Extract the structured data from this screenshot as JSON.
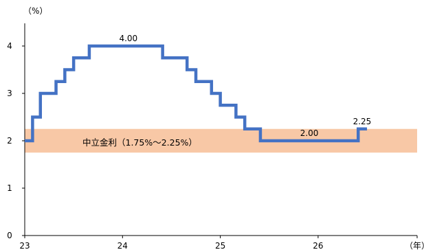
{
  "chart_data": {
    "type": "line",
    "y_unit": "（%）",
    "x_unit": "（年）",
    "x_ticks": [
      {
        "value": 23,
        "label": "23"
      },
      {
        "value": 24,
        "label": "24"
      },
      {
        "value": 25,
        "label": "25"
      },
      {
        "value": 26,
        "label": "26"
      }
    ],
    "y_ticks": [
      0,
      1,
      2,
      3,
      4
    ],
    "xlim": [
      23,
      27
    ],
    "ylim": [
      0,
      4.5
    ],
    "grid": false,
    "band": {
      "label": "中立金利（1.75%～2.25%）",
      "lower": 1.75,
      "upper": 2.25,
      "color": "#f8c8a6"
    },
    "series": [
      {
        "color": "#4472c4",
        "step": true,
        "points": [
          {
            "x": 23.0,
            "y": 2.0
          },
          {
            "x": 23.08,
            "y": 2.5
          },
          {
            "x": 23.16,
            "y": 3.0
          },
          {
            "x": 23.32,
            "y": 3.25
          },
          {
            "x": 23.41,
            "y": 3.5
          },
          {
            "x": 23.5,
            "y": 3.75
          },
          {
            "x": 23.66,
            "y": 4.0
          },
          {
            "x": 24.41,
            "y": 3.75
          },
          {
            "x": 24.66,
            "y": 3.5
          },
          {
            "x": 24.75,
            "y": 3.25
          },
          {
            "x": 24.91,
            "y": 3.0
          },
          {
            "x": 25.0,
            "y": 2.75
          },
          {
            "x": 25.16,
            "y": 2.5
          },
          {
            "x": 25.25,
            "y": 2.25
          },
          {
            "x": 25.41,
            "y": 2.0
          },
          {
            "x": 26.41,
            "y": 2.25
          },
          {
            "x": 26.5,
            "y": 2.25
          }
        ]
      }
    ],
    "data_labels": [
      {
        "x": 24.06,
        "y": 4.0,
        "text": "4.00"
      },
      {
        "x": 25.91,
        "y": 2.0,
        "text": "2.00"
      },
      {
        "x": 26.45,
        "y": 2.25,
        "text": "2.25"
      }
    ]
  }
}
